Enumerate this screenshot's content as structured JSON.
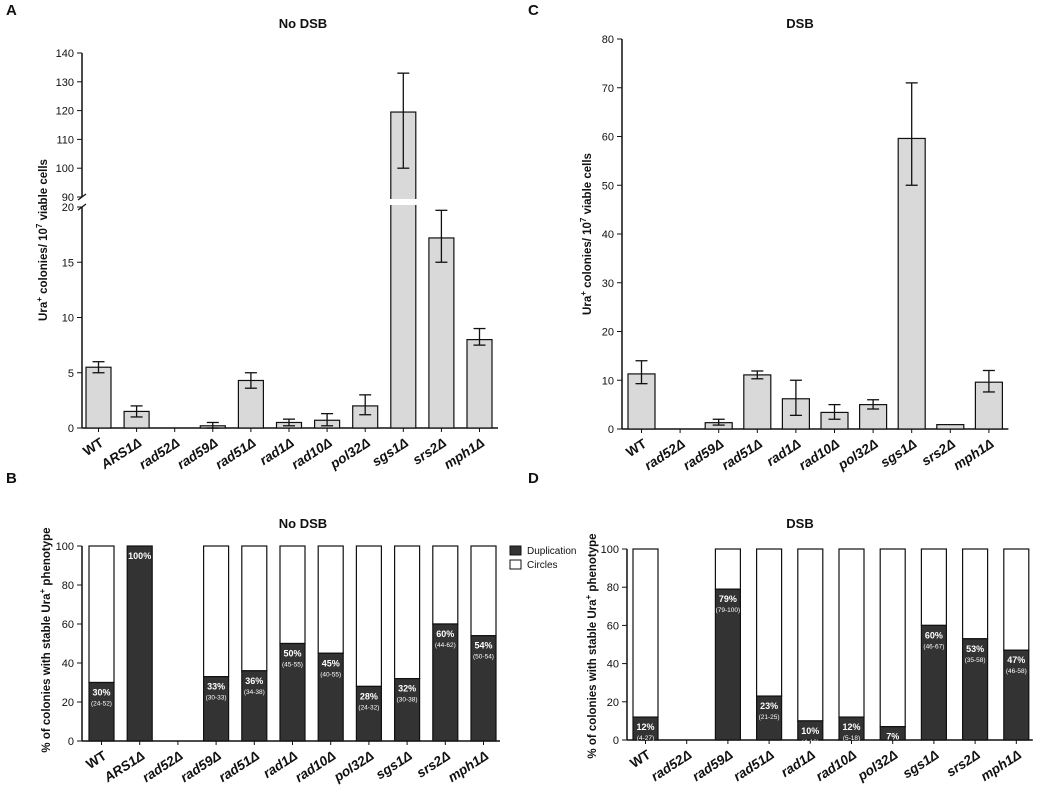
{
  "panels": {
    "A": {
      "letter": "A",
      "title": "No DSB"
    },
    "B": {
      "letter": "B",
      "title": "No DSB"
    },
    "C": {
      "letter": "C",
      "title": "DSB"
    },
    "D": {
      "letter": "D",
      "title": "DSB"
    }
  },
  "ylabels": {
    "ura_prefix": "Ura",
    "ura_sup": "+",
    "ura_mid": " colonies/ 10",
    "ura_exp": "7",
    "ura_suffix": " viable cells",
    "pct_prefix": "% of colonies with stable Ura",
    "pct_sup": "+",
    "pct_suffix": " phenotype"
  },
  "legend": {
    "duplication": "Duplication",
    "circles": "Circles"
  },
  "colors": {
    "bar_gray": "#d9d9d9",
    "duplication": "#333333",
    "circles": "#ffffff",
    "stroke": "#111111"
  },
  "chart_data": [
    {
      "panel": "A",
      "type": "bar",
      "title": "No DSB",
      "ylabel": "Ura+ colonies/ 10^7 viable cells",
      "broken_axis": true,
      "lower_segment": {
        "ylim": [
          0,
          20
        ],
        "ticks": [
          "0",
          "5",
          "10",
          "15",
          "20"
        ]
      },
      "upper_segment": {
        "ylim": [
          90,
          140
        ],
        "ticks": [
          "90",
          "100",
          "110",
          "120",
          "130",
          "140"
        ]
      },
      "categories": [
        "WT",
        "ARS1Δ",
        "rad52Δ",
        "rad59Δ",
        "rad51Δ",
        "rad1Δ",
        "rad10Δ",
        "pol32Δ",
        "sgs1Δ",
        "srs2Δ",
        "mph1Δ"
      ],
      "values": [
        5.5,
        1.5,
        0,
        0.2,
        4.3,
        0.5,
        0.7,
        2.0,
        119.5,
        17.2,
        8.0
      ],
      "error_low": [
        5.0,
        1.0,
        0,
        0.0,
        3.6,
        0.2,
        0.2,
        1.2,
        100,
        15.0,
        7.5
      ],
      "error_high": [
        6.0,
        2.0,
        0,
        0.5,
        5.0,
        0.8,
        1.3,
        3.0,
        133,
        19.7,
        9.0
      ]
    },
    {
      "panel": "C",
      "type": "bar",
      "title": "DSB",
      "ylabel": "Ura+ colonies/ 10^7 viable cells",
      "ylim": [
        0,
        80
      ],
      "ticks": [
        "0",
        "10",
        "20",
        "30",
        "40",
        "50",
        "60",
        "70",
        "80"
      ],
      "categories": [
        "WT",
        "rad52Δ",
        "rad59Δ",
        "rad51Δ",
        "rad1Δ",
        "rad10Δ",
        "pol32Δ",
        "sgs1Δ",
        "srs2Δ",
        "mph1Δ"
      ],
      "values": [
        11.3,
        0,
        1.3,
        11.1,
        6.2,
        3.4,
        5.0,
        59.6,
        0.9,
        9.6
      ],
      "error_low": [
        9.3,
        0,
        0.8,
        10.3,
        2.8,
        2.0,
        4.1,
        50.0,
        0.9,
        7.6
      ],
      "error_high": [
        14.0,
        0,
        2.0,
        11.9,
        10.0,
        5.0,
        6.0,
        71.0,
        0.9,
        12.0
      ]
    },
    {
      "panel": "B",
      "type": "bar",
      "stacked": true,
      "title": "No DSB",
      "ylabel": "% of colonies with stable Ura+ phenotype",
      "ylim": [
        0,
        100
      ],
      "ticks": [
        "0",
        "20",
        "40",
        "60",
        "80",
        "100"
      ],
      "legend_position": "top-right",
      "categories": [
        "WT",
        "ARS1Δ",
        "rad52Δ",
        "rad59Δ",
        "rad51Δ",
        "rad1Δ",
        "rad10Δ",
        "pol32Δ",
        "sgs1Δ",
        "srs2Δ",
        "mph1Δ"
      ],
      "series": [
        {
          "name": "Duplication",
          "values": [
            30,
            100,
            null,
            33,
            36,
            50,
            45,
            28,
            32,
            60,
            54
          ]
        },
        {
          "name": "Circles",
          "values": [
            70,
            0,
            null,
            67,
            64,
            50,
            55,
            72,
            68,
            40,
            46
          ]
        }
      ],
      "labels": [
        "30%",
        "100%",
        "",
        "33%",
        "36%",
        "50%",
        "45%",
        "28%",
        "32%",
        "60%",
        "54%"
      ],
      "ranges": [
        "(24-52)",
        "",
        "",
        "(30-33)",
        "(34-38)",
        "(45-55)",
        "(40-55)",
        "(24-32)",
        "(30-38)",
        "(44-62)",
        "(50-54)"
      ]
    },
    {
      "panel": "D",
      "type": "bar",
      "stacked": true,
      "title": "DSB",
      "ylabel": "% of colonies with stable Ura+ phenotype",
      "ylim": [
        0,
        100
      ],
      "ticks": [
        "0",
        "20",
        "40",
        "60",
        "80",
        "100"
      ],
      "categories": [
        "WT",
        "rad52Δ",
        "rad59Δ",
        "rad51Δ",
        "rad1Δ",
        "rad10Δ",
        "pol32Δ",
        "sgs1Δ",
        "srs2Δ",
        "mph1Δ"
      ],
      "series": [
        {
          "name": "Duplication",
          "values": [
            12,
            null,
            79,
            23,
            10,
            12,
            7,
            60,
            53,
            47
          ]
        },
        {
          "name": "Circles",
          "values": [
            88,
            null,
            21,
            77,
            90,
            88,
            93,
            40,
            47,
            53
          ]
        }
      ],
      "labels": [
        "12%",
        "",
        "79%",
        "23%",
        "10%",
        "12%",
        "7%",
        "60%",
        "53%",
        "47%"
      ],
      "ranges": [
        "(4-27)",
        "",
        "(79-100)",
        "(21-25)",
        "(4-16)",
        "(5-18)",
        "(4-12)",
        "(46-67)",
        "(35-58)",
        "(46-58)"
      ]
    }
  ]
}
